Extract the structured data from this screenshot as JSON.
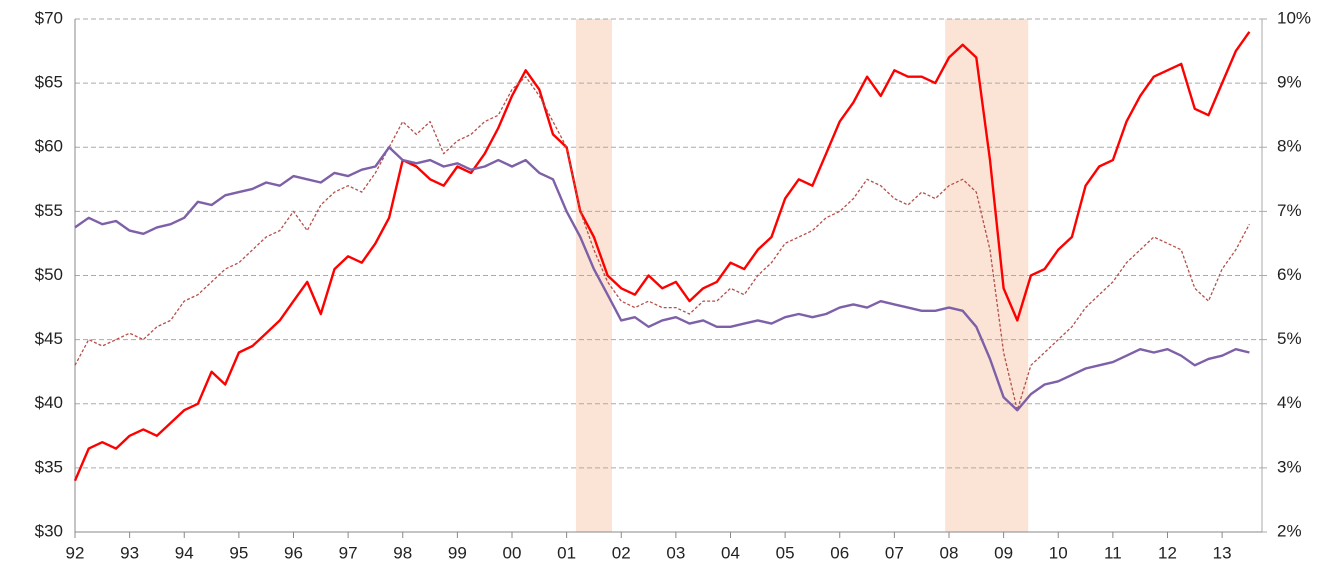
{
  "chart_data": {
    "type": "line",
    "x": [
      1992,
      1992.25,
      1992.5,
      1992.75,
      1993,
      1993.25,
      1993.5,
      1993.75,
      1994,
      1994.25,
      1994.5,
      1994.75,
      1995,
      1995.25,
      1995.5,
      1995.75,
      1996,
      1996.25,
      1996.5,
      1996.75,
      1997,
      1997.25,
      1997.5,
      1997.75,
      1998,
      1998.25,
      1998.5,
      1998.75,
      1999,
      1999.25,
      1999.5,
      1999.75,
      2000,
      2000.25,
      2000.5,
      2000.75,
      2001,
      2001.25,
      2001.5,
      2001.75,
      2002,
      2002.25,
      2002.5,
      2002.75,
      2003,
      2003.25,
      2003.5,
      2003.75,
      2004,
      2004.25,
      2004.5,
      2004.75,
      2005,
      2005.25,
      2005.5,
      2005.75,
      2006,
      2006.25,
      2006.5,
      2006.75,
      2007,
      2007.25,
      2007.5,
      2007.75,
      2008,
      2008.25,
      2008.5,
      2008.75,
      2009,
      2009.25,
      2009.5,
      2009.75,
      2010,
      2010.25,
      2010.5,
      2010.75,
      2011,
      2011.25,
      2011.5,
      2011.75,
      2012,
      2012.25,
      2012.5,
      2012.75,
      2013,
      2013.25,
      2013.5
    ],
    "series": [
      {
        "color": "#ff0000",
        "dash": false,
        "axis": "y",
        "values": [
          34,
          36.5,
          37,
          36.5,
          37.5,
          38,
          37.5,
          38.5,
          39.5,
          40,
          42.5,
          41.5,
          44,
          44.5,
          45.5,
          46.5,
          48,
          49.5,
          47,
          50.5,
          51.5,
          51,
          52.5,
          54.5,
          59,
          58.5,
          57.5,
          57,
          58.5,
          58,
          59.5,
          61.5,
          64,
          66,
          64.5,
          61,
          60,
          55,
          53,
          50,
          49,
          48.5,
          50,
          49,
          49.5,
          48,
          49,
          49.5,
          51,
          50.5,
          52,
          53,
          56,
          57.5,
          57,
          59.5,
          62,
          63.5,
          65.5,
          64,
          66,
          65.5,
          65.5,
          65,
          67,
          68,
          67,
          59,
          49,
          46.5,
          50,
          50.5,
          52,
          53,
          57,
          58.5,
          59,
          62,
          64,
          65.5,
          66,
          66.5,
          63,
          62.5,
          65,
          67.5,
          69
        ]
      },
      {
        "color": "#b5504a",
        "dash": true,
        "axis": "y",
        "values": [
          43,
          45,
          44.5,
          45,
          45.5,
          45,
          46,
          46.5,
          48,
          48.5,
          49.5,
          50.5,
          51,
          52,
          53,
          53.5,
          55,
          53.5,
          55.5,
          56.5,
          57,
          56.5,
          58,
          60,
          62,
          61,
          62,
          59.5,
          60.5,
          61,
          62,
          62.5,
          64.5,
          65.5,
          64,
          62,
          60,
          55,
          52,
          49.5,
          48,
          47.5,
          48,
          47.5,
          47.5,
          47,
          48,
          48,
          49,
          48.5,
          50,
          51,
          52.5,
          53,
          53.5,
          54.5,
          55,
          56,
          57.5,
          57,
          56,
          55.5,
          56.5,
          56,
          57,
          57.5,
          56.5,
          52,
          44,
          39.5,
          43,
          44,
          45,
          46,
          47.5,
          48.5,
          49.5,
          51,
          52,
          53,
          52.5,
          52,
          49,
          48,
          50.5,
          52,
          54
        ]
      },
      {
        "color": "#7e60a8",
        "dash": false,
        "axis": "y2",
        "values": [
          6.75,
          6.9,
          6.8,
          6.85,
          6.7,
          6.65,
          6.75,
          6.8,
          6.9,
          7.15,
          7.1,
          7.25,
          7.3,
          7.35,
          7.45,
          7.4,
          7.55,
          7.5,
          7.45,
          7.6,
          7.55,
          7.65,
          7.7,
          8.0,
          7.8,
          7.75,
          7.8,
          7.7,
          7.75,
          7.65,
          7.7,
          7.8,
          7.7,
          7.8,
          7.6,
          7.5,
          7.0,
          6.6,
          6.1,
          5.7,
          5.3,
          5.35,
          5.2,
          5.3,
          5.35,
          5.25,
          5.3,
          5.2,
          5.2,
          5.25,
          5.3,
          5.25,
          5.35,
          5.4,
          5.35,
          5.4,
          5.5,
          5.55,
          5.5,
          5.6,
          5.55,
          5.5,
          5.45,
          5.45,
          5.5,
          5.45,
          5.2,
          4.7,
          4.1,
          3.9,
          4.15,
          4.3,
          4.35,
          4.45,
          4.55,
          4.6,
          4.65,
          4.75,
          4.85,
          4.8,
          4.85,
          4.75,
          4.6,
          4.7,
          4.75,
          4.85,
          4.8
        ]
      }
    ],
    "xlim": [
      1992,
      2013.73
    ],
    "xticks": [
      {
        "value": 1992,
        "label": "92"
      },
      {
        "value": 1993,
        "label": "93"
      },
      {
        "value": 1994,
        "label": "94"
      },
      {
        "value": 1995,
        "label": "95"
      },
      {
        "value": 1996,
        "label": "96"
      },
      {
        "value": 1997,
        "label": "97"
      },
      {
        "value": 1998,
        "label": "98"
      },
      {
        "value": 1999,
        "label": "99"
      },
      {
        "value": 2000,
        "label": "00"
      },
      {
        "value": 2001,
        "label": "01"
      },
      {
        "value": 2002,
        "label": "02"
      },
      {
        "value": 2003,
        "label": "03"
      },
      {
        "value": 2004,
        "label": "04"
      },
      {
        "value": 2005,
        "label": "05"
      },
      {
        "value": 2006,
        "label": "06"
      },
      {
        "value": 2007,
        "label": "07"
      },
      {
        "value": 2008,
        "label": "08"
      },
      {
        "value": 2009,
        "label": "09"
      },
      {
        "value": 2010,
        "label": "10"
      },
      {
        "value": 2011,
        "label": "11"
      },
      {
        "value": 2012,
        "label": "12"
      },
      {
        "value": 2013,
        "label": "13"
      }
    ],
    "ylim": [
      30,
      70
    ],
    "yticks": [
      {
        "value": 30,
        "label": "$30"
      },
      {
        "value": 35,
        "label": "$35"
      },
      {
        "value": 40,
        "label": "$40"
      },
      {
        "value": 45,
        "label": "$45"
      },
      {
        "value": 50,
        "label": "$50"
      },
      {
        "value": 55,
        "label": "$55"
      },
      {
        "value": 60,
        "label": "$60"
      },
      {
        "value": 65,
        "label": "$65"
      },
      {
        "value": 70,
        "label": "$70"
      }
    ],
    "y2lim": [
      2,
      10
    ],
    "y2ticks": [
      {
        "value": 2,
        "label": "2%"
      },
      {
        "value": 3,
        "label": "3%"
      },
      {
        "value": 4,
        "label": "4%"
      },
      {
        "value": 5,
        "label": "5%"
      },
      {
        "value": 6,
        "label": "6%"
      },
      {
        "value": 7,
        "label": "7%"
      },
      {
        "value": 8,
        "label": "8%"
      },
      {
        "value": 9,
        "label": "9%"
      },
      {
        "value": 10,
        "label": "10%"
      }
    ],
    "y2_color": "#7e60a8",
    "shaded_regions": [
      [
        2001.17,
        2001.83
      ],
      [
        2007.93,
        2009.45
      ]
    ],
    "shade_color": "#fbe4d5",
    "grid": true
  }
}
